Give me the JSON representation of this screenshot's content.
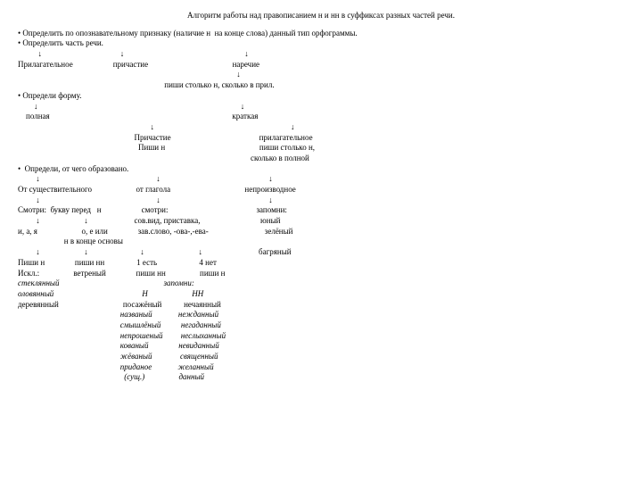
{
  "title": "Алгоритм работы над правописанием н и нн в суффиксах разных частей речи.",
  "r1": "• Определить по опознавательному признаку (наличие н  на конце слова) данный тип орфограммы.",
  "r2": "• Определить часть речи.",
  "r3": "          ↓                                       ↓                                                            ↓",
  "r4": "Прилагательное                    причастие                                          наречие",
  "r5": "                                                                                                             ↓",
  "r6": "                                                                         пиши столько н, сколько в прил.",
  "r7": "• Определи форму.",
  "r8": "        ↓                                                                                                     ↓",
  "r9": "    полная                                                                                           краткая",
  "r10": "                                                                  ↓                                                                    ↓",
  "r11": "                                                          Причастие                                            прилагательное",
  "r12": "                                                            Пиши н                                               пиши столько н,",
  "r12b": "                                                                                                                    сколько в полной",
  "r13": "•  Определи, от чего образовано.",
  "r14": "         ↓                                                          ↓                                                      ↓",
  "r15": "От существительного                      от глагола                                     непроизводное",
  "r16": "         ↓                                                          ↓                                                      ↓",
  "r17": "Смотри:  букву перед   н                    смотри:                                            запомни:",
  "r18": "         ↓                      ↓                       сов.вид, приставка,                              юный",
  "r19": "и, а, я                      о, е или               зав.слово, -ова-,-ева-                            зелёный",
  "r19b": "                       н в конце основы",
  "r20": "         ↓                      ↓                          ↓                           ↓                            багряный",
  "r21": "Пиши н               пиши нн                1 есть                     4 нет",
  "r22": "Искл.:                 ветреный               пиши нн                 пиши н",
  "r23": "стеклянный                                                    запомни:",
  "r24": "оловянный                                            Н                      НН",
  "r25": "деревянный                                посажёный           нечаянный",
  "r26": "                                                   названый             нежданный",
  "r27": "                                                   смышлёный          негаданный",
  "r28": "                                                   непрошеный         неслыханный",
  "r29": "                                                   кованый               невиданный",
  "r30": "                                                   жёваный              священный",
  "r31": "                                                   приданое             желанный",
  "r32": "                                                     (сущ.)                 данный"
}
